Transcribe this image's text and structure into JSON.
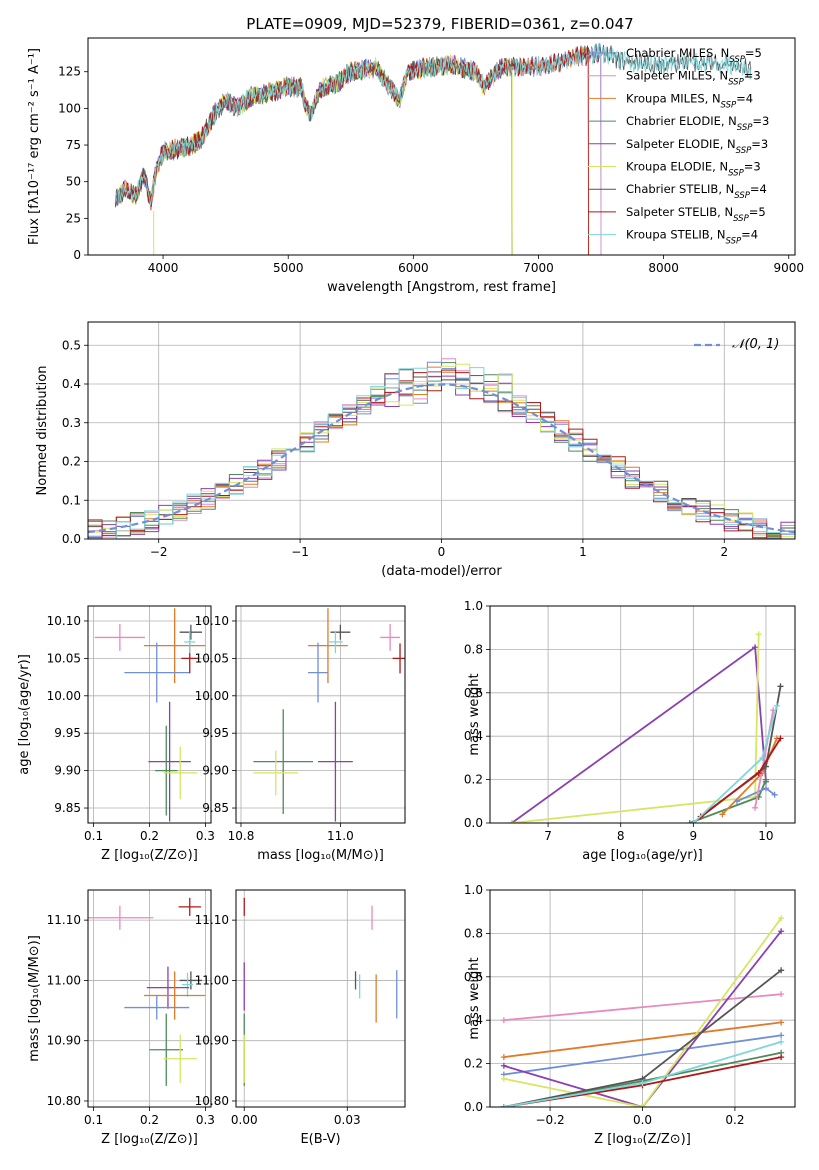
{
  "figure_title": "PLATE=0909, MJD=52379, FIBERID=0361, z=0.047",
  "colors": {
    "Chabrier MILES": "#6f8fd8",
    "Salpeter MILES": "#e88ac0",
    "Kroupa MILES": "#e07b2a",
    "Chabrier ELODIE": "#4e8a5c",
    "Salpeter ELODIE": "#8b3fb0",
    "Kroupa ELODIE": "#d6e660",
    "Chabrier STELIB": "#555555",
    "Salpeter STELIB": "#b01818",
    "Kroupa STELIB": "#7fd6da"
  },
  "chart_data": [
    {
      "id": "spectrum",
      "type": "line",
      "title": "PLATE=0909, MJD=52379, FIBERID=0361, z=0.047",
      "xlabel": "wavelength [Angstrom, rest frame]",
      "ylabel": "Flux [fλ10⁻¹⁷ erg cm⁻² s⁻¹ A⁻¹]",
      "xlim": [
        3400,
        9050
      ],
      "ylim": [
        0,
        148
      ],
      "xticks": [
        4000,
        5000,
        6000,
        7000,
        8000,
        9000
      ],
      "yticks": [
        0,
        25,
        50,
        75,
        100,
        125
      ],
      "grid": false,
      "legend": "upper right",
      "spectrum_anchors": [
        [
          3620,
          38
        ],
        [
          3700,
          45
        ],
        [
          3780,
          40
        ],
        [
          3850,
          55
        ],
        [
          3900,
          35
        ],
        [
          3950,
          60
        ],
        [
          4000,
          70
        ],
        [
          4100,
          72
        ],
        [
          4200,
          74
        ],
        [
          4300,
          78
        ],
        [
          4400,
          95
        ],
        [
          4500,
          105
        ],
        [
          4600,
          100
        ],
        [
          4700,
          108
        ],
        [
          4800,
          110
        ],
        [
          4900,
          112
        ],
        [
          5000,
          115
        ],
        [
          5100,
          114
        ],
        [
          5175,
          95
        ],
        [
          5250,
          112
        ],
        [
          5400,
          118
        ],
        [
          5500,
          125
        ],
        [
          5700,
          128
        ],
        [
          5890,
          105
        ],
        [
          5950,
          125
        ],
        [
          6100,
          128
        ],
        [
          6300,
          130
        ],
        [
          6500,
          125
        ],
        [
          6563,
          115
        ],
        [
          6700,
          128
        ],
        [
          6900,
          128
        ],
        [
          7100,
          130
        ],
        [
          7300,
          135
        ],
        [
          7500,
          138
        ],
        [
          7700,
          132
        ],
        [
          8000,
          130
        ],
        [
          8200,
          132
        ],
        [
          8500,
          130
        ],
        [
          8800,
          125
        ]
      ],
      "series": [
        {
          "name": "Chabrier MILES, N_SSP=5",
          "x_end": 7500
        },
        {
          "name": "Salpeter MILES, N_SSP=3",
          "x_end": 7500
        },
        {
          "name": "Kroupa MILES, N_SSP=4",
          "x_end": 7400
        },
        {
          "name": "Chabrier ELODIE, N_SSP=3",
          "x_end": 6790
        },
        {
          "name": "Salpeter ELODIE, N_SSP=3",
          "x_end": 6790
        },
        {
          "name": "Kroupa ELODIE, N_SSP=3",
          "x_end": 6790
        },
        {
          "name": "Chabrier STELIB, N_SSP=4",
          "x_end": 8700
        },
        {
          "name": "Salpeter STELIB, N_SSP=5",
          "x_end": 7400
        },
        {
          "name": "Kroupa STELIB, N_SSP=4",
          "x_end": 8700
        }
      ]
    },
    {
      "id": "residuals",
      "type": "histogram",
      "xlabel": "(data-model)/error",
      "ylabel": "Normed distribution",
      "xlim": [
        -2.5,
        2.5
      ],
      "ylim": [
        0,
        0.56
      ],
      "xticks": [
        -2,
        -1,
        0,
        1,
        2
      ],
      "yticks": [
        0.0,
        0.1,
        0.2,
        0.3,
        0.4,
        0.5
      ],
      "grid": true,
      "legend": "upper right",
      "reference_curve": "N(0,1)",
      "reference_label": "𝒩(0, 1)"
    },
    {
      "id": "age_vs_Z",
      "type": "errorbar",
      "xlabel": "Z [log₁₀(Z/Z⊙)]",
      "ylabel": "age  [log₁₀(age/yr)]",
      "xlim": [
        0.09,
        0.31
      ],
      "ylim": [
        9.83,
        10.12
      ],
      "xticks": [
        0.1,
        0.2,
        0.3
      ],
      "yticks": [
        9.85,
        9.9,
        9.95,
        10.0,
        10.05,
        10.1
      ],
      "grid": true,
      "points": [
        {
          "series": "Salpeter MILES",
          "x": 0.147,
          "y": 10.078,
          "xerr": 0.045,
          "yerr": 0.018
        },
        {
          "series": "Kroupa MILES",
          "x": 0.245,
          "y": 10.067,
          "xerr": 0.055,
          "yerr": 0.05
        },
        {
          "series": "Chabrier MILES",
          "x": 0.213,
          "y": 10.031,
          "xerr": 0.058,
          "yerr": 0.04
        },
        {
          "series": "Chabrier STELIB",
          "x": 0.274,
          "y": 10.085,
          "xerr": 0.02,
          "yerr": 0.01
        },
        {
          "series": "Salpeter STELIB",
          "x": 0.272,
          "y": 10.05,
          "xerr": 0.015,
          "yerr": 0.02
        },
        {
          "series": "Kroupa STELIB",
          "x": 0.272,
          "y": 10.072,
          "xerr": 0.01,
          "yerr": 0.015
        },
        {
          "series": "Salpeter ELODIE",
          "x": 0.236,
          "y": 9.912,
          "xerr": 0.038,
          "yerr": 0.08
        },
        {
          "series": "Chabrier ELODIE",
          "x": 0.23,
          "y": 9.9,
          "xerr": 0.02,
          "yerr": 0.06
        },
        {
          "series": "Kroupa ELODIE",
          "x": 0.255,
          "y": 9.897,
          "xerr": 0.03,
          "yerr": 0.035
        }
      ]
    },
    {
      "id": "age_vs_mass",
      "type": "errorbar",
      "xlabel": "mass [log₁₀(M/M⊙)]",
      "ylabel": "",
      "xlim": [
        10.79,
        11.13
      ],
      "ylim": [
        9.83,
        10.12
      ],
      "xticks": [
        10.8,
        11.0
      ],
      "yticks": [
        9.85,
        9.9,
        9.95,
        10.0,
        10.05,
        10.1
      ],
      "grid": true,
      "points": [
        {
          "series": "Salpeter MILES",
          "x": 11.1,
          "y": 10.078,
          "xerr": 0.02,
          "yerr": 0.018
        },
        {
          "series": "Kroupa MILES",
          "x": 10.975,
          "y": 10.067,
          "xerr": 0.04,
          "yerr": 0.05
        },
        {
          "series": "Chabrier MILES",
          "x": 10.955,
          "y": 10.031,
          "xerr": 0.02,
          "yerr": 0.04
        },
        {
          "series": "Chabrier STELIB",
          "x": 11.0,
          "y": 10.085,
          "xerr": 0.02,
          "yerr": 0.01
        },
        {
          "series": "Salpeter STELIB",
          "x": 11.12,
          "y": 10.05,
          "xerr": 0.015,
          "yerr": 0.02
        },
        {
          "series": "Kroupa STELIB",
          "x": 10.99,
          "y": 10.072,
          "xerr": 0.015,
          "yerr": 0.015
        },
        {
          "series": "Salpeter ELODIE",
          "x": 10.99,
          "y": 9.912,
          "xerr": 0.035,
          "yerr": 0.08
        },
        {
          "series": "Chabrier ELODIE",
          "x": 10.885,
          "y": 9.912,
          "xerr": 0.06,
          "yerr": 0.07
        },
        {
          "series": "Kroupa ELODIE",
          "x": 10.87,
          "y": 9.897,
          "xerr": 0.045,
          "yerr": 0.03
        }
      ]
    },
    {
      "id": "weight_vs_age",
      "type": "line",
      "xlabel": "age  [log₁₀(age/yr)]",
      "ylabel": "mass weight",
      "xlim": [
        6.2,
        10.4
      ],
      "ylim": [
        0,
        1.0
      ],
      "xticks": [
        7,
        8,
        9,
        10
      ],
      "yticks": [
        0.0,
        0.2,
        0.4,
        0.6,
        0.8,
        1.0
      ],
      "grid": true,
      "series": [
        {
          "series": "Salpeter ELODIE",
          "x": [
            6.5,
            9.85,
            10.0
          ],
          "y": [
            0.0,
            0.81,
            0.19
          ]
        },
        {
          "series": "Kroupa ELODIE",
          "x": [
            6.5,
            9.85,
            9.9
          ],
          "y": [
            0.0,
            0.12,
            0.87
          ]
        },
        {
          "series": "Chabrier ELODIE",
          "x": [
            8.95,
            9.9,
            10.0
          ],
          "y": [
            0.0,
            0.12,
            0.2
          ]
        },
        {
          "series": "Kroupa MILES",
          "x": [
            9.4,
            9.95,
            10.15
          ],
          "y": [
            0.04,
            0.23,
            0.39
          ]
        },
        {
          "series": "Chabrier MILES",
          "x": [
            9.6,
            10.0,
            10.12
          ],
          "y": [
            0.1,
            0.16,
            0.13
          ]
        },
        {
          "series": "Salpeter MILES",
          "x": [
            9.85,
            10.1
          ],
          "y": [
            0.07,
            0.52
          ]
        },
        {
          "series": "Chabrier STELIB",
          "x": [
            9.0,
            10.0,
            10.2
          ],
          "y": [
            0.0,
            0.26,
            0.63
          ]
        },
        {
          "series": "Salpeter STELIB",
          "x": [
            9.1,
            9.9,
            10.2
          ],
          "y": [
            0.03,
            0.23,
            0.39
          ]
        },
        {
          "series": "Kroupa STELIB",
          "x": [
            9.0,
            9.95,
            10.15
          ],
          "y": [
            0.0,
            0.3,
            0.54
          ]
        }
      ]
    },
    {
      "id": "mass_vs_Z",
      "type": "errorbar",
      "xlabel": "Z [log₁₀(Z/Z⊙)]",
      "ylabel": "mass [log₁₀(M/M⊙)]",
      "xlim": [
        0.09,
        0.31
      ],
      "ylim": [
        10.79,
        11.15
      ],
      "xticks": [
        0.1,
        0.2,
        0.3
      ],
      "yticks": [
        10.8,
        10.9,
        11.0,
        11.1
      ],
      "grid": true,
      "points": [
        {
          "series": "Salpeter MILES",
          "x": 0.147,
          "y": 11.104,
          "xerr": 0.06,
          "yerr": 0.02
        },
        {
          "series": "Salpeter STELIB",
          "x": 0.272,
          "y": 11.122,
          "xerr": 0.02,
          "yerr": 0.015
        },
        {
          "series": "Chabrier STELIB",
          "x": 0.274,
          "y": 11.0,
          "xerr": 0.02,
          "yerr": 0.015
        },
        {
          "series": "Kroupa STELIB",
          "x": 0.268,
          "y": 10.993,
          "xerr": 0.01,
          "yerr": 0.02
        },
        {
          "series": "Salpeter ELODIE",
          "x": 0.233,
          "y": 10.988,
          "xerr": 0.038,
          "yerr": 0.035
        },
        {
          "series": "Kroupa MILES",
          "x": 0.245,
          "y": 10.975,
          "xerr": 0.055,
          "yerr": 0.04
        },
        {
          "series": "Chabrier MILES",
          "x": 0.213,
          "y": 10.955,
          "xerr": 0.058,
          "yerr": 0.02
        },
        {
          "series": "Chabrier ELODIE",
          "x": 0.23,
          "y": 10.885,
          "xerr": 0.03,
          "yerr": 0.06
        },
        {
          "series": "Kroupa ELODIE",
          "x": 0.255,
          "y": 10.87,
          "xerr": 0.03,
          "yerr": 0.04
        }
      ]
    },
    {
      "id": "mass_vs_ebv",
      "type": "errorbar",
      "xlabel": "E(B-V)",
      "ylabel": "",
      "xlim": [
        -0.002,
        0.039
      ],
      "ylim": [
        10.79,
        11.15
      ],
      "xticks": [
        0.0,
        0.025
      ],
      "yticks": [
        10.8,
        10.9,
        11.0,
        11.1
      ],
      "grid": true,
      "points": [
        {
          "series": "Salpeter STELIB",
          "x": 0.0,
          "y": 11.122,
          "yerr": 0.015
        },
        {
          "series": "Salpeter ELODIE",
          "x": 0.0,
          "y": 10.99,
          "yerr": 0.04
        },
        {
          "series": "Chabrier ELODIE",
          "x": 0.0,
          "y": 10.885,
          "yerr": 0.06
        },
        {
          "series": "Kroupa ELODIE",
          "x": 0.0,
          "y": 10.87,
          "yerr": 0.04
        },
        {
          "series": "Salpeter MILES",
          "x": 0.031,
          "y": 11.104,
          "yerr": 0.02
        },
        {
          "series": "Chabrier STELIB",
          "x": 0.027,
          "y": 11.0,
          "yerr": 0.015
        },
        {
          "series": "Kroupa STELIB",
          "x": 0.028,
          "y": 10.99,
          "yerr": 0.02
        },
        {
          "series": "Kroupa MILES",
          "x": 0.032,
          "y": 10.97,
          "yerr": 0.04
        },
        {
          "series": "Chabrier MILES",
          "x": 0.037,
          "y": 10.977,
          "yerr": 0.04
        }
      ]
    },
    {
      "id": "weight_vs_Z",
      "type": "line",
      "xlabel": "Z [log₁₀(Z/Z⊙)]",
      "ylabel": "mass weight",
      "xlim": [
        -0.33,
        0.33
      ],
      "ylim": [
        0,
        1.0
      ],
      "xticks": [
        -0.2,
        0.0,
        0.2
      ],
      "yticks": [
        0.0,
        0.2,
        0.4,
        0.6,
        0.8,
        1.0
      ],
      "grid": true,
      "series": [
        {
          "series": "Salpeter MILES",
          "x": [
            -0.3,
            0.3
          ],
          "y": [
            0.4,
            0.52
          ]
        },
        {
          "series": "Kroupa MILES",
          "x": [
            -0.3,
            0.3
          ],
          "y": [
            0.23,
            0.39
          ]
        },
        {
          "series": "Chabrier MILES",
          "x": [
            -0.3,
            0.3
          ],
          "y": [
            0.15,
            0.33
          ]
        },
        {
          "series": "Salpeter ELODIE",
          "x": [
            -0.3,
            0.0,
            0.3
          ],
          "y": [
            0.19,
            0.0,
            0.81
          ]
        },
        {
          "series": "Kroupa ELODIE",
          "x": [
            -0.3,
            0.0,
            0.3
          ],
          "y": [
            0.13,
            0.0,
            0.87
          ]
        },
        {
          "series": "Chabrier ELODIE",
          "x": [
            -0.3,
            0.0,
            0.3
          ],
          "y": [
            0.0,
            0.12,
            0.25
          ]
        },
        {
          "series": "Chabrier STELIB",
          "x": [
            -0.3,
            0.0,
            0.3
          ],
          "y": [
            0.0,
            0.13,
            0.63
          ]
        },
        {
          "series": "Salpeter STELIB",
          "x": [
            -0.3,
            0.0,
            0.3
          ],
          "y": [
            0.0,
            0.1,
            0.23
          ]
        },
        {
          "series": "Kroupa STELIB",
          "x": [
            -0.3,
            0.0,
            0.3
          ],
          "y": [
            0.0,
            0.11,
            0.3
          ]
        }
      ]
    }
  ]
}
